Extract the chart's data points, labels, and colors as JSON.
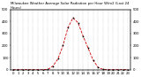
{
  "title": "Milwaukee Weather Average Solar Radiation per Hour W/m2 (Last 24 Hours)",
  "hours": [
    0,
    1,
    2,
    3,
    4,
    5,
    6,
    7,
    8,
    9,
    10,
    11,
    12,
    13,
    14,
    15,
    16,
    17,
    18,
    19,
    20,
    21,
    22,
    23
  ],
  "values": [
    0,
    0,
    0,
    0,
    0,
    0,
    0,
    2,
    30,
    90,
    200,
    350,
    430,
    390,
    280,
    180,
    80,
    20,
    2,
    0,
    0,
    0,
    0,
    0
  ],
  "line_color": "#cc0000",
  "line_style": "--",
  "marker": "s",
  "marker_color": "#000000",
  "marker_size": 0.8,
  "line_width": 0.6,
  "ylim": [
    0,
    500
  ],
  "yticks_left": [
    0,
    100,
    200,
    300,
    400,
    500
  ],
  "yticks_right": [
    0,
    100,
    200,
    300,
    400,
    500
  ],
  "bg_color": "#ffffff",
  "grid_color": "#999999",
  "tick_label_fontsize": 2.8,
  "title_fontsize": 2.8,
  "xlabel_fontsize": 2.5
}
